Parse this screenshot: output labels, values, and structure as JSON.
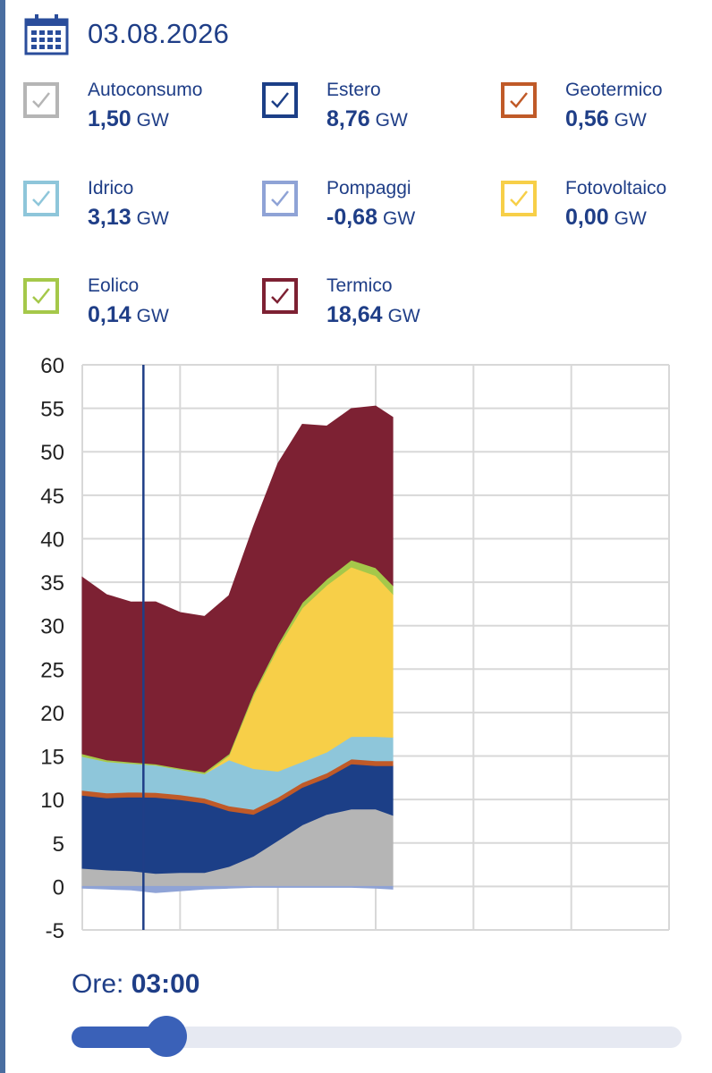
{
  "header": {
    "date": "03.08.2026"
  },
  "legend": [
    {
      "name": "Autoconsumo",
      "value": "1,50",
      "unit": "GW",
      "color": "#b5b5b5",
      "check": "#b5b5b5"
    },
    {
      "name": "Estero",
      "value": "8,76",
      "unit": "GW",
      "color": "#1c3f87",
      "check": "#1c3f87"
    },
    {
      "name": "Geotermico",
      "value": "0,56",
      "unit": "GW",
      "color": "#c05a28",
      "check": "#c05a28"
    },
    {
      "name": "Idrico",
      "value": "3,13",
      "unit": "GW",
      "color": "#8ec6da",
      "check": "#8ec6da"
    },
    {
      "name": "Pompaggi",
      "value": "-0,68",
      "unit": "GW",
      "color": "#8fa3d6",
      "check": "#8fa3d6"
    },
    {
      "name": "Fotovoltaico",
      "value": "0,00",
      "unit": "GW",
      "color": "#f7cf48",
      "check": "#f7cf48"
    },
    {
      "name": "Eolico",
      "value": "0,14",
      "unit": "GW",
      "color": "#a5c84a",
      "check": "#a5c84a"
    },
    {
      "name": "Termico",
      "value": "18,64",
      "unit": "GW",
      "color": "#7d2133",
      "check": "#7d2133"
    }
  ],
  "chart_data": {
    "type": "area",
    "stacked": true,
    "ylim": [
      -5,
      60
    ],
    "y_ticks": [
      "60",
      "55",
      "50",
      "45",
      "40",
      "35",
      "30",
      "25",
      "20",
      "15",
      "10",
      "5",
      "0",
      "-5"
    ],
    "xlim": [
      0,
      24
    ],
    "x_gridlines": [
      0,
      4,
      8,
      12,
      16,
      20
    ],
    "grid": true,
    "cursor_x": 2.5,
    "x": [
      0,
      1,
      2,
      3,
      4,
      5,
      6,
      7,
      8,
      9,
      10,
      11,
      12,
      12.7
    ],
    "series": [
      {
        "name": "Pompaggi",
        "color": "#8fa3d6",
        "values": [
          -0.2,
          -0.3,
          -0.4,
          -0.7,
          -0.5,
          -0.3,
          -0.2,
          -0.1,
          -0.1,
          -0.1,
          -0.1,
          -0.1,
          -0.2,
          -0.3
        ]
      },
      {
        "name": "Autoconsumo",
        "color": "#b5b5b5",
        "values": [
          2.1,
          1.9,
          1.8,
          1.5,
          1.6,
          1.6,
          2.3,
          3.5,
          5.3,
          7.1,
          8.3,
          8.9,
          8.9,
          8.2
        ]
      },
      {
        "name": "Estero",
        "color": "#1c3f87",
        "values": [
          8.4,
          8.3,
          8.5,
          8.76,
          8.4,
          8.0,
          6.4,
          4.8,
          4.4,
          4.3,
          4.2,
          5.2,
          5.0,
          5.7
        ]
      },
      {
        "name": "Geotermico",
        "color": "#c05a28",
        "values": [
          0.56,
          0.56,
          0.56,
          0.56,
          0.56,
          0.56,
          0.56,
          0.56,
          0.56,
          0.56,
          0.56,
          0.56,
          0.56,
          0.56
        ]
      },
      {
        "name": "Idrico",
        "color": "#8ec6da",
        "values": [
          3.9,
          3.6,
          3.3,
          3.13,
          2.9,
          2.8,
          5.3,
          4.7,
          3.0,
          2.4,
          2.4,
          2.6,
          2.8,
          2.7
        ]
      },
      {
        "name": "Fotovoltaico",
        "color": "#f7cf48",
        "values": [
          0,
          0,
          0,
          0,
          0,
          0,
          0.5,
          8.4,
          14.2,
          17.7,
          19.2,
          19.5,
          18.5,
          16.5
        ]
      },
      {
        "name": "Eolico",
        "color": "#a5c84a",
        "values": [
          0.3,
          0.2,
          0.15,
          0.14,
          0.15,
          0.2,
          0.2,
          0.3,
          0.4,
          0.6,
          0.7,
          0.8,
          0.9,
          1.0
        ]
      },
      {
        "name": "Termico",
        "color": "#7d2133",
        "values": [
          20.3,
          19.0,
          18.4,
          18.64,
          17.9,
          17.9,
          18.2,
          19.1,
          20.8,
          20.5,
          17.6,
          17.4,
          18.6,
          19.3
        ]
      }
    ]
  },
  "slider": {
    "label": "Ore:",
    "value": "03:00",
    "hours": 3,
    "max_hours": 23
  }
}
